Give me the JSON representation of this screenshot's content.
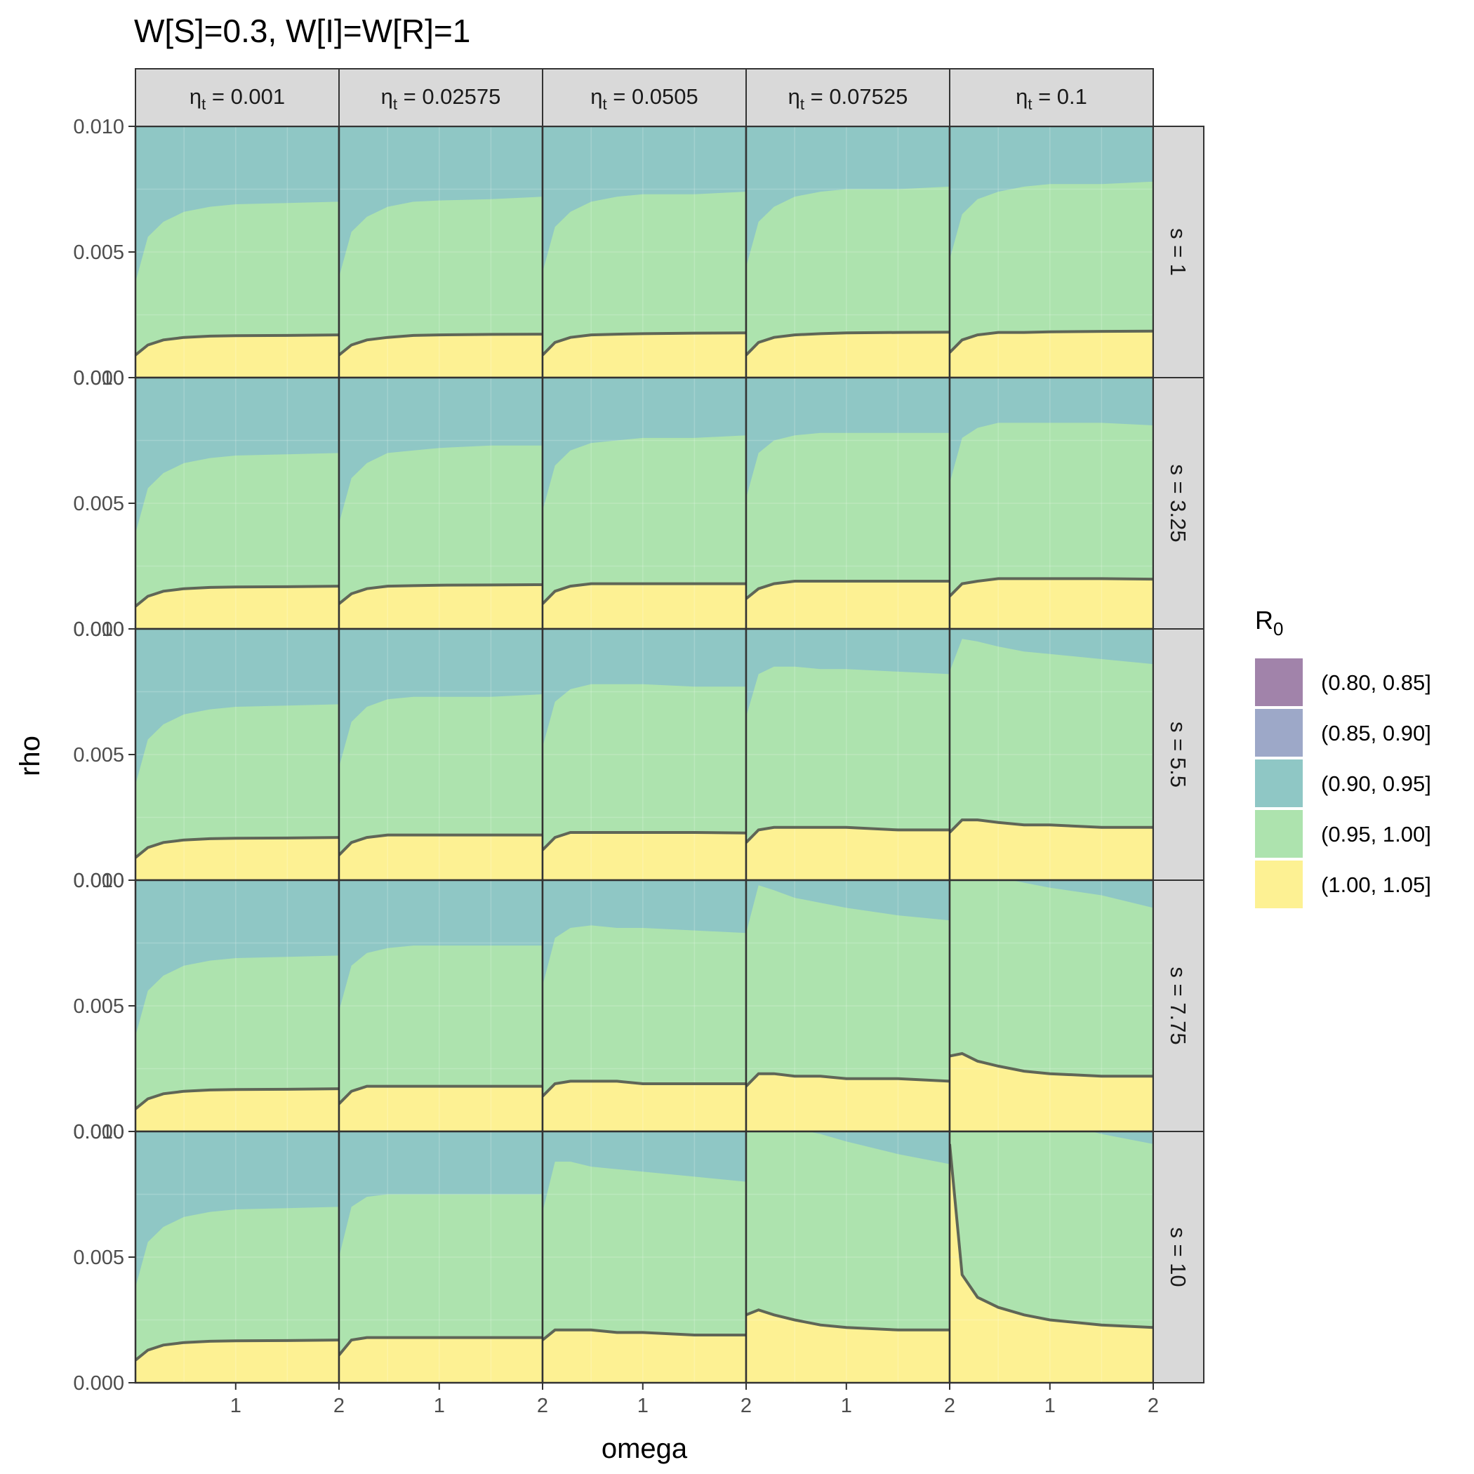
{
  "chart_data": {
    "type": "area",
    "title": "W[S]=0.3, W[I]=W[R]=1",
    "xlabel": "omega",
    "ylabel": "rho",
    "xlim": [
      0.03,
      2
    ],
    "ylim": [
      0,
      0.01
    ],
    "x_ticks": [
      1,
      2
    ],
    "y_ticks": [
      "0.000",
      "0.005",
      "0.010"
    ],
    "grid": true,
    "legend_position": "right",
    "legend": {
      "title_base": "R",
      "title_sub": "0",
      "entries": [
        {
          "label": "(0.80, 0.85]",
          "color": "#a183aa"
        },
        {
          "label": "(0.85, 0.90]",
          "color": "#9da8c8"
        },
        {
          "label": "(0.90, 0.95]",
          "color": "#8fc7c5"
        },
        {
          "label": "(0.95, 1.00]",
          "color": "#ade3ae"
        },
        {
          "label": "(1.00, 1.05]",
          "color": "#fdf193"
        }
      ]
    },
    "facet_columns": [
      {
        "label_base": "η",
        "label_sub": "t",
        "label_value": " = 0.001"
      },
      {
        "label_base": "η",
        "label_sub": "t",
        "label_value": " = 0.02575"
      },
      {
        "label_base": "η",
        "label_sub": "t",
        "label_value": " = 0.0505"
      },
      {
        "label_base": "η",
        "label_sub": "t",
        "label_value": " = 0.07525"
      },
      {
        "label_base": "η",
        "label_sub": "t",
        "label_value": " = 0.1"
      }
    ],
    "facet_rows": [
      "s = 1",
      "s = 3.25",
      "s = 5.5",
      "s = 7.75",
      "s = 10"
    ],
    "boundary_series": {
      "x": [
        0.03,
        0.15,
        0.3,
        0.5,
        0.75,
        1.0,
        1.5,
        2.0
      ],
      "panels": [
        [
          {
            "R0_1.00": [
              0.0009,
              0.0013,
              0.0015,
              0.0016,
              0.00165,
              0.00167,
              0.00168,
              0.0017
            ],
            "R0_0.95": [
              0.0038,
              0.0056,
              0.0062,
              0.0066,
              0.0068,
              0.0069,
              0.00695,
              0.007
            ],
            "R0_0.90": [
              0.0101,
              0.0101,
              0.0101,
              0.0101,
              0.0101,
              0.0101,
              0.0101,
              0.0101
            ]
          },
          {
            "R0_1.00": [
              0.0009,
              0.0013,
              0.0015,
              0.0016,
              0.00168,
              0.0017,
              0.00172,
              0.00173
            ],
            "R0_0.95": [
              0.004,
              0.0058,
              0.0064,
              0.0068,
              0.007,
              0.00705,
              0.0071,
              0.0072
            ],
            "R0_0.90": [
              0.0101,
              0.0101,
              0.0101,
              0.0101,
              0.0101,
              0.0101,
              0.0101,
              0.0101
            ]
          },
          {
            "R0_1.00": [
              0.0009,
              0.0014,
              0.0016,
              0.0017,
              0.00173,
              0.00175,
              0.00177,
              0.00178
            ],
            "R0_0.95": [
              0.0042,
              0.006,
              0.0066,
              0.007,
              0.0072,
              0.0073,
              0.0073,
              0.0074
            ],
            "R0_0.90": [
              0.0101,
              0.0101,
              0.0101,
              0.0101,
              0.0101,
              0.0101,
              0.0101,
              0.0101
            ]
          },
          {
            "R0_1.00": [
              0.0009,
              0.0014,
              0.0016,
              0.0017,
              0.00175,
              0.00178,
              0.0018,
              0.00181
            ],
            "R0_0.95": [
              0.0044,
              0.0062,
              0.0068,
              0.0072,
              0.0074,
              0.0075,
              0.0075,
              0.0076
            ],
            "R0_0.90": [
              0.0101,
              0.0101,
              0.0101,
              0.0101,
              0.0101,
              0.0101,
              0.0101,
              0.0101
            ]
          },
          {
            "R0_1.00": [
              0.001,
              0.0015,
              0.0017,
              0.0018,
              0.0018,
              0.00182,
              0.00184,
              0.00185
            ],
            "R0_0.95": [
              0.0047,
              0.0065,
              0.0071,
              0.0074,
              0.0076,
              0.0077,
              0.0077,
              0.0078
            ],
            "R0_0.90": [
              0.0101,
              0.0101,
              0.0101,
              0.0101,
              0.0101,
              0.0101,
              0.0101,
              0.0101
            ]
          }
        ],
        [
          {
            "R0_1.00": [
              0.0009,
              0.0013,
              0.0015,
              0.0016,
              0.00165,
              0.00167,
              0.00168,
              0.0017
            ],
            "R0_0.95": [
              0.0038,
              0.0056,
              0.0062,
              0.0066,
              0.0068,
              0.0069,
              0.00695,
              0.007
            ],
            "R0_0.90": [
              0.0101,
              0.0101,
              0.0101,
              0.0101,
              0.0101,
              0.0101,
              0.0101,
              0.0101
            ]
          },
          {
            "R0_1.00": [
              0.001,
              0.0014,
              0.0016,
              0.0017,
              0.00172,
              0.00174,
              0.00175,
              0.00176
            ],
            "R0_0.95": [
              0.0042,
              0.006,
              0.0066,
              0.007,
              0.0071,
              0.0072,
              0.0073,
              0.0073
            ],
            "R0_0.90": [
              0.0101,
              0.0101,
              0.0101,
              0.0101,
              0.0101,
              0.0101,
              0.0101,
              0.0101
            ]
          },
          {
            "R0_1.00": [
              0.001,
              0.0015,
              0.0017,
              0.0018,
              0.0018,
              0.0018,
              0.0018,
              0.0018
            ],
            "R0_0.95": [
              0.0047,
              0.0065,
              0.0071,
              0.0074,
              0.0075,
              0.0076,
              0.0076,
              0.0077
            ],
            "R0_0.90": [
              0.0101,
              0.0101,
              0.0101,
              0.0101,
              0.0101,
              0.0101,
              0.0101,
              0.0101
            ]
          },
          {
            "R0_1.00": [
              0.0012,
              0.0016,
              0.0018,
              0.0019,
              0.0019,
              0.0019,
              0.0019,
              0.0019
            ],
            "R0_0.95": [
              0.0052,
              0.007,
              0.0075,
              0.0077,
              0.0078,
              0.0078,
              0.0078,
              0.0078
            ],
            "R0_0.90": [
              0.0101,
              0.0101,
              0.0101,
              0.0101,
              0.0101,
              0.0101,
              0.0101,
              0.0101
            ]
          },
          {
            "R0_1.00": [
              0.0013,
              0.0018,
              0.0019,
              0.002,
              0.002,
              0.002,
              0.002,
              0.00198
            ],
            "R0_0.95": [
              0.0058,
              0.0076,
              0.008,
              0.0082,
              0.0082,
              0.0082,
              0.0082,
              0.0081
            ],
            "R0_0.90": [
              0.0101,
              0.0101,
              0.0101,
              0.0101,
              0.0101,
              0.0101,
              0.0101,
              0.0101
            ]
          }
        ],
        [
          {
            "R0_1.00": [
              0.0009,
              0.0013,
              0.0015,
              0.0016,
              0.00165,
              0.00167,
              0.00168,
              0.0017
            ],
            "R0_0.95": [
              0.0038,
              0.0056,
              0.0062,
              0.0066,
              0.0068,
              0.0069,
              0.00695,
              0.007
            ],
            "R0_0.90": [
              0.0101,
              0.0101,
              0.0101,
              0.0101,
              0.0101,
              0.0101,
              0.0101,
              0.0101
            ]
          },
          {
            "R0_1.00": [
              0.001,
              0.0015,
              0.0017,
              0.0018,
              0.0018,
              0.0018,
              0.0018,
              0.0018
            ],
            "R0_0.95": [
              0.0045,
              0.0063,
              0.0069,
              0.0072,
              0.0073,
              0.0073,
              0.0073,
              0.0074
            ],
            "R0_0.90": [
              0.0101,
              0.0101,
              0.0101,
              0.0101,
              0.0101,
              0.0101,
              0.0101,
              0.0101
            ]
          },
          {
            "R0_1.00": [
              0.0012,
              0.0017,
              0.0019,
              0.0019,
              0.0019,
              0.0019,
              0.0019,
              0.00188
            ],
            "R0_0.95": [
              0.0053,
              0.0071,
              0.0076,
              0.0078,
              0.0078,
              0.0078,
              0.0077,
              0.0077
            ],
            "R0_0.90": [
              0.0101,
              0.0101,
              0.0101,
              0.0101,
              0.0101,
              0.0101,
              0.0101,
              0.0101
            ]
          },
          {
            "R0_1.00": [
              0.0015,
              0.002,
              0.0021,
              0.0021,
              0.0021,
              0.0021,
              0.002,
              0.002
            ],
            "R0_0.95": [
              0.0065,
              0.0082,
              0.0085,
              0.0085,
              0.0084,
              0.0084,
              0.0083,
              0.0082
            ],
            "R0_0.90": [
              0.0101,
              0.0101,
              0.0101,
              0.0101,
              0.0101,
              0.0101,
              0.0101,
              0.0101
            ]
          },
          {
            "R0_1.00": [
              0.0019,
              0.0024,
              0.0024,
              0.0023,
              0.0022,
              0.0022,
              0.0021,
              0.0021
            ],
            "R0_0.95": [
              0.0083,
              0.0096,
              0.0095,
              0.0093,
              0.0091,
              0.009,
              0.0088,
              0.0086
            ],
            "R0_0.90": [
              0.0101,
              0.0101,
              0.0101,
              0.0101,
              0.0101,
              0.0101,
              0.0101,
              0.0101
            ]
          }
        ],
        [
          {
            "R0_1.00": [
              0.0009,
              0.0013,
              0.0015,
              0.0016,
              0.00165,
              0.00167,
              0.00168,
              0.0017
            ],
            "R0_0.95": [
              0.0038,
              0.0056,
              0.0062,
              0.0066,
              0.0068,
              0.0069,
              0.00695,
              0.007
            ],
            "R0_0.90": [
              0.0101,
              0.0101,
              0.0101,
              0.0101,
              0.0101,
              0.0101,
              0.0101,
              0.0101
            ]
          },
          {
            "R0_1.00": [
              0.0011,
              0.0016,
              0.0018,
              0.0018,
              0.0018,
              0.0018,
              0.0018,
              0.0018
            ],
            "R0_0.95": [
              0.0048,
              0.0066,
              0.0071,
              0.0073,
              0.0074,
              0.0074,
              0.0074,
              0.0074
            ],
            "R0_0.90": [
              0.0101,
              0.0101,
              0.0101,
              0.0101,
              0.0101,
              0.0101,
              0.0101,
              0.0101
            ]
          },
          {
            "R0_1.00": [
              0.0014,
              0.0019,
              0.002,
              0.002,
              0.002,
              0.0019,
              0.0019,
              0.0019
            ],
            "R0_0.95": [
              0.0058,
              0.0077,
              0.0081,
              0.0082,
              0.0081,
              0.0081,
              0.008,
              0.0079
            ],
            "R0_0.90": [
              0.0101,
              0.0101,
              0.0101,
              0.0101,
              0.0101,
              0.0101,
              0.0101,
              0.0101
            ]
          },
          {
            "R0_1.00": [
              0.0018,
              0.0023,
              0.0023,
              0.0022,
              0.0022,
              0.0021,
              0.0021,
              0.002
            ],
            "R0_0.95": [
              0.0079,
              0.0098,
              0.0096,
              0.0093,
              0.0091,
              0.0089,
              0.0086,
              0.0084
            ],
            "R0_0.90": [
              0.0101,
              0.0101,
              0.0101,
              0.0101,
              0.0101,
              0.0101,
              0.0101,
              0.0101
            ]
          },
          {
            "R0_1.00": [
              0.003,
              0.0031,
              0.0028,
              0.0026,
              0.0024,
              0.0023,
              0.0022,
              0.0022
            ],
            "R0_0.95": [
              0.0106,
              0.0106,
              0.0104,
              0.0101,
              0.0099,
              0.0097,
              0.0094,
              0.0089
            ],
            "R0_0.90": [
              0.0108,
              0.0108,
              0.0108,
              0.0108,
              0.0108,
              0.0108,
              0.0108,
              0.0108
            ]
          }
        ],
        [
          {
            "R0_1.00": [
              0.0009,
              0.0013,
              0.0015,
              0.0016,
              0.00165,
              0.00167,
              0.00168,
              0.0017
            ],
            "R0_0.95": [
              0.0038,
              0.0056,
              0.0062,
              0.0066,
              0.0068,
              0.0069,
              0.00695,
              0.007
            ],
            "R0_0.90": [
              0.0101,
              0.0101,
              0.0101,
              0.0101,
              0.0101,
              0.0101,
              0.0101,
              0.0101
            ]
          },
          {
            "R0_1.00": [
              0.0011,
              0.0017,
              0.0018,
              0.0018,
              0.0018,
              0.0018,
              0.0018,
              0.0018
            ],
            "R0_0.95": [
              0.005,
              0.007,
              0.0074,
              0.0075,
              0.0075,
              0.0075,
              0.0075,
              0.0075
            ],
            "R0_0.90": [
              0.0101,
              0.0101,
              0.0101,
              0.0101,
              0.0101,
              0.0101,
              0.0101,
              0.0101
            ]
          },
          {
            "R0_1.00": [
              0.0017,
              0.0021,
              0.0021,
              0.0021,
              0.002,
              0.002,
              0.0019,
              0.0019
            ],
            "R0_0.95": [
              0.0068,
              0.0088,
              0.0088,
              0.0086,
              0.0085,
              0.0084,
              0.0082,
              0.008
            ],
            "R0_0.90": [
              0.0101,
              0.0101,
              0.0101,
              0.0101,
              0.0101,
              0.0101,
              0.0101,
              0.0101
            ]
          },
          {
            "R0_1.00": [
              0.0027,
              0.0029,
              0.0027,
              0.0025,
              0.0023,
              0.0022,
              0.0021,
              0.0021
            ],
            "R0_0.95": [
              0.0101,
              0.0101,
              0.0101,
              0.0101,
              0.0099,
              0.0096,
              0.0091,
              0.0087
            ],
            "R0_0.90": [
              0.0108,
              0.0108,
              0.0108,
              0.0108,
              0.0108,
              0.0108,
              0.0108,
              0.0108
            ]
          },
          {
            "R0_1.00": [
              0.0095,
              0.0043,
              0.0034,
              0.003,
              0.0027,
              0.0025,
              0.0023,
              0.0022
            ],
            "R0_0.95": [
              0.0106,
              0.0106,
              0.0106,
              0.0106,
              0.0106,
              0.0104,
              0.0099,
              0.0095
            ],
            "R0_0.90": [
              0.0108,
              0.0108,
              0.0108,
              0.0108,
              0.0108,
              0.0108,
              0.0108,
              0.0108
            ]
          }
        ]
      ]
    }
  }
}
